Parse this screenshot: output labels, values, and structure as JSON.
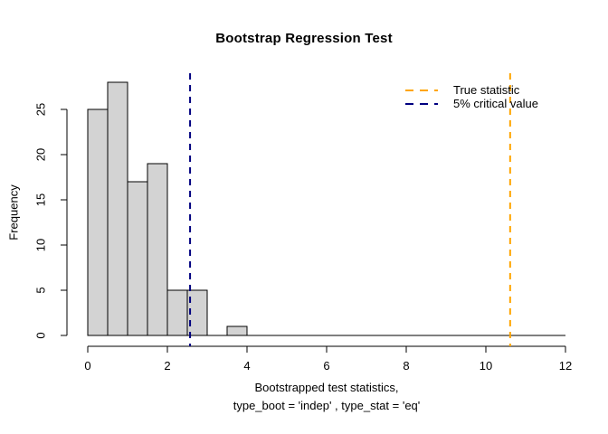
{
  "colors": {
    "background": "#ffffff",
    "bar_fill": "#d3d3d3",
    "bar_border": "#000000",
    "axis": "#000000",
    "true_stat_line": "#ffa500",
    "critical_line": "#000080"
  },
  "chart_data": {
    "type": "histogram",
    "title": "Bootstrap Regression Test",
    "ylabel": "Frequency",
    "xlabel_line1": "Bootstrapped test statistics,",
    "xlabel_line2": "type_boot = 'indep' , type_stat = 'eq'",
    "bin_start": 0,
    "bin_width": 0.5,
    "counts": [
      25,
      28,
      17,
      19,
      5,
      5,
      0,
      1
    ],
    "x_ticks": [
      0,
      2,
      4,
      6,
      8,
      10,
      12
    ],
    "y_ticks": [
      0,
      5,
      10,
      15,
      20,
      25
    ],
    "xlim": [
      0,
      12
    ],
    "ylim": [
      0,
      28
    ],
    "grid": false,
    "vlines": [
      {
        "label": "True statistic",
        "x": 10.61,
        "color": "#ffa500",
        "style": "dashed"
      },
      {
        "label": "5% critical value",
        "x": 2.57,
        "color": "#000080",
        "style": "dashed"
      }
    ],
    "legend": {
      "position": "topright",
      "entries": [
        {
          "label": "True statistic",
          "color": "#ffa500",
          "style": "dashed"
        },
        {
          "label": "5% critical value",
          "color": "#000080",
          "style": "dashed"
        }
      ]
    }
  }
}
